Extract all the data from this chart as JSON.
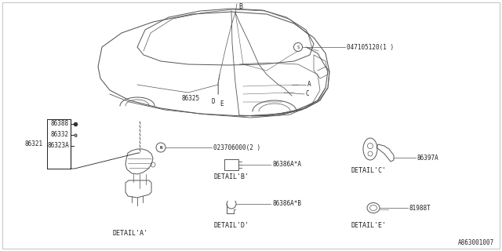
{
  "bg_color": "#ffffff",
  "diagram_id": "A863001007",
  "line_color": "#555555",
  "text_color": "#222222",
  "fs": 5.5,
  "parts": {
    "bolt_label": "047105120(1 )",
    "nut_label": "023706000(2 )",
    "detail_b_label": "86386A*A",
    "detail_d_label": "86386A*B",
    "detail_c_label": "86397A",
    "detail_e_label": "81988T",
    "detail_a_text": "DETAIL'A'",
    "detail_b_text": "DETAIL'B'",
    "detail_c_text": "DETAIL'C'",
    "detail_d_text": "DETAIL'D'",
    "detail_e_text": "DETAIL'E'",
    "left_labels": [
      "86388",
      "86332",
      "86323A"
    ],
    "big_label": "86321",
    "center_label_86325": "86325",
    "pt_B": "B",
    "pt_A": "A",
    "pt_C": "C",
    "pt_D": "D",
    "pt_E": "E"
  }
}
